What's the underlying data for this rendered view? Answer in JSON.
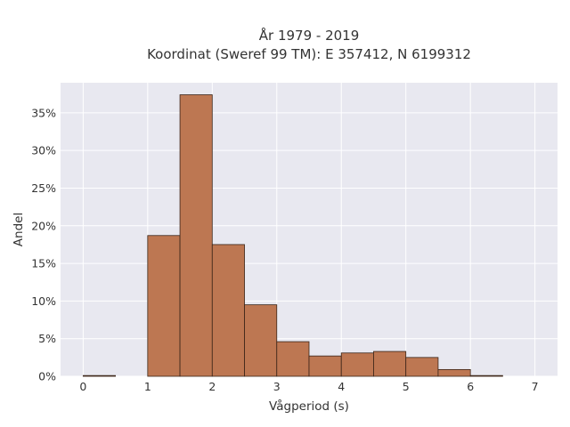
{
  "chart_data": {
    "type": "bar",
    "title": "År 1979 - 2019",
    "subtitle": "Koordinat (Sweref 99 TM): E 357412, N 6199312",
    "xlabel": "Vågperiod (s)",
    "ylabel": "Andel",
    "bin_width": 0.5,
    "bins": [
      {
        "start": 0.0,
        "end": 0.5,
        "value": 0.1
      },
      {
        "start": 0.5,
        "end": 1.0,
        "value": 0.0
      },
      {
        "start": 1.0,
        "end": 1.5,
        "value": 18.7
      },
      {
        "start": 1.5,
        "end": 2.0,
        "value": 37.4
      },
      {
        "start": 2.0,
        "end": 2.5,
        "value": 17.5
      },
      {
        "start": 2.5,
        "end": 3.0,
        "value": 9.5
      },
      {
        "start": 3.0,
        "end": 3.5,
        "value": 4.6
      },
      {
        "start": 3.5,
        "end": 4.0,
        "value": 2.7
      },
      {
        "start": 4.0,
        "end": 4.5,
        "value": 3.1
      },
      {
        "start": 4.5,
        "end": 5.0,
        "value": 3.3
      },
      {
        "start": 5.0,
        "end": 5.5,
        "value": 2.5
      },
      {
        "start": 5.5,
        "end": 6.0,
        "value": 0.9
      },
      {
        "start": 6.0,
        "end": 6.5,
        "value": 0.1
      }
    ],
    "xlim": [
      -0.35,
      7.35
    ],
    "ylim": [
      0,
      39
    ],
    "xticks": [
      0,
      1,
      2,
      3,
      4,
      5,
      6,
      7
    ],
    "xtick_labels": [
      "0",
      "1",
      "2",
      "3",
      "4",
      "5",
      "6",
      "7"
    ],
    "yticks": [
      0,
      5,
      10,
      15,
      20,
      25,
      30,
      35
    ],
    "ytick_labels": [
      "0%",
      "5%",
      "10%",
      "15%",
      "20%",
      "25%",
      "30%",
      "35%"
    ],
    "grid": true,
    "colors": {
      "bar_fill": "#bd7752",
      "bar_edge": "#3a2418",
      "plot_bg": "#e8e8f0",
      "grid": "#ffffff"
    }
  }
}
